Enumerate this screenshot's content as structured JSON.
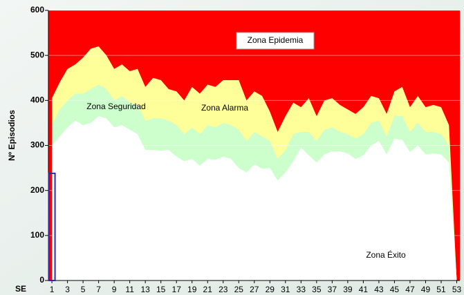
{
  "chart_data": {
    "type": "epidemic-channel",
    "y_label": "Nº Episodios",
    "x_label": "SE",
    "x": [
      1,
      2,
      3,
      4,
      5,
      6,
      7,
      8,
      9,
      10,
      11,
      12,
      13,
      14,
      15,
      16,
      17,
      18,
      19,
      20,
      21,
      22,
      23,
      24,
      25,
      26,
      27,
      28,
      29,
      30,
      31,
      32,
      33,
      34,
      35,
      36,
      37,
      38,
      39,
      40,
      41,
      42,
      43,
      44,
      45,
      46,
      47,
      48,
      49,
      50,
      51,
      52,
      53
    ],
    "xlim": [
      0.55,
      53.4
    ],
    "xticks": [
      1,
      3,
      5,
      7,
      9,
      11,
      13,
      15,
      17,
      19,
      21,
      23,
      25,
      27,
      29,
      31,
      33,
      35,
      37,
      39,
      41,
      43,
      45,
      47,
      49,
      51,
      53
    ],
    "ylim": [
      0,
      600
    ],
    "yticks": [
      0,
      100,
      200,
      300,
      400,
      500,
      600
    ],
    "grid": true,
    "epidemic_zone": {
      "name": "Zona Epidemia",
      "color": "#ff0000"
    },
    "series": [
      {
        "name": "Zona Alarma",
        "color": "#ffff99",
        "values": [
          405,
          440,
          470,
          480,
          495,
          515,
          520,
          500,
          470,
          480,
          465,
          470,
          430,
          450,
          445,
          425,
          420,
          400,
          430,
          415,
          435,
          430,
          445,
          445,
          445,
          400,
          420,
          410,
          375,
          330,
          365,
          395,
          385,
          405,
          365,
          400,
          405,
          390,
          380,
          370,
          385,
          410,
          405,
          370,
          420,
          430,
          385,
          410,
          385,
          390,
          385,
          345,
          0
        ]
      },
      {
        "name": "Zona Seguridad",
        "color": "#ccffcc",
        "values": [
          345,
          380,
          400,
          415,
          415,
          425,
          435,
          425,
          400,
          410,
          395,
          390,
          355,
          360,
          360,
          355,
          345,
          325,
          340,
          325,
          345,
          340,
          350,
          345,
          335,
          310,
          330,
          320,
          310,
          270,
          290,
          325,
          330,
          330,
          310,
          335,
          340,
          330,
          325,
          315,
          325,
          350,
          355,
          320,
          365,
          365,
          330,
          350,
          330,
          330,
          325,
          300,
          0
        ]
      },
      {
        "name": "Zona Éxito",
        "color": "#ffffff",
        "values": [
          300,
          320,
          340,
          355,
          345,
          350,
          365,
          360,
          340,
          345,
          335,
          325,
          290,
          290,
          288,
          290,
          275,
          265,
          270,
          255,
          270,
          268,
          275,
          270,
          250,
          240,
          258,
          248,
          250,
          222,
          240,
          265,
          295,
          278,
          262,
          280,
          287,
          287,
          282,
          270,
          278,
          300,
          310,
          280,
          315,
          312,
          285,
          300,
          280,
          282,
          280,
          262,
          0
        ]
      }
    ],
    "current": {
      "x": 1,
      "value": 238,
      "color": "#2a2aa8"
    }
  }
}
